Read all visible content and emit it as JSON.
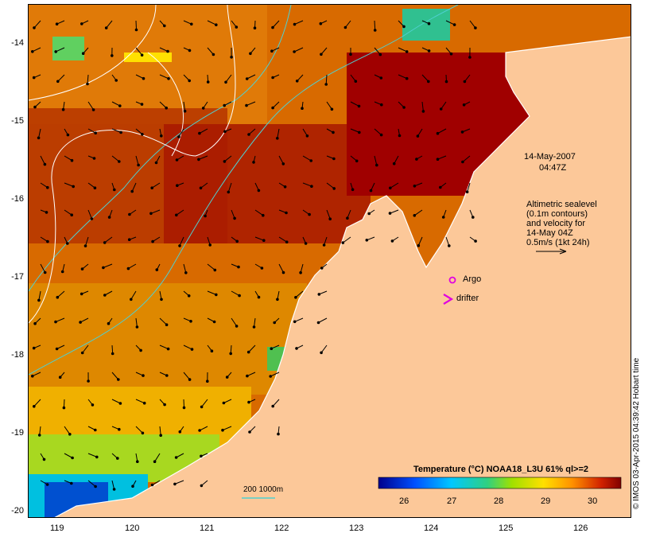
{
  "map": {
    "lat_ticks": [
      "-14",
      "-15",
      "-16",
      "-17",
      "-18",
      "-19",
      "-20"
    ],
    "lon_ticks": [
      "119",
      "120",
      "121",
      "122",
      "123",
      "124",
      "125",
      "126"
    ],
    "date_label": "14-May-2007",
    "time_label": "04:47Z",
    "altimetry_lines": [
      "Altimetric sealevel",
      "(0.1m contours)",
      "and velocity for",
      "14-May 04Z",
      "0.5m/s (1kt 24h)"
    ],
    "argo_label": "Argo",
    "drifter_label": "drifter",
    "depth_legend": "200  1000m",
    "credit": "© IMOS 03-Apr-2015 04:39:42 Hobart time",
    "colors": {
      "land": "#fcc899",
      "sea_hot": "#a00000",
      "sea_warm": "#d86a00",
      "sea_mid": "#f0a000",
      "contour": "#4fd0d0",
      "sealevel_contour": "#ffffff",
      "argo": "#e000e0"
    }
  },
  "colorbar": {
    "title": "Temperature (°C) NOAA18_L3U 61% ql>=2",
    "ticks": [
      "26",
      "27",
      "28",
      "29",
      "30"
    ]
  }
}
